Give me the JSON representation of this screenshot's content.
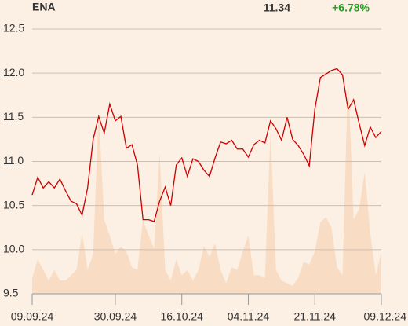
{
  "chart_data": {
    "type": "line",
    "title": "ENA",
    "last_price": "11.34",
    "change": "+6.78%",
    "categories": [
      "09.09.24",
      null,
      null,
      null,
      null,
      null,
      null,
      null,
      null,
      null,
      null,
      null,
      null,
      null,
      null,
      "30.09.24",
      null,
      null,
      null,
      null,
      null,
      null,
      null,
      null,
      null,
      null,
      null,
      "16.10.24",
      null,
      null,
      null,
      null,
      null,
      null,
      null,
      null,
      null,
      null,
      null,
      "04.11.24",
      null,
      null,
      null,
      null,
      null,
      null,
      null,
      null,
      null,
      null,
      null,
      "21.11.24",
      null,
      null,
      null,
      null,
      null,
      null,
      null,
      null,
      null,
      null,
      null,
      "09.12.24"
    ],
    "series": [
      {
        "name": "volume",
        "color": "#f8dcc4",
        "axis": "y2",
        "values": [
          6,
          13,
          9,
          5,
          9,
          5,
          5,
          7,
          9,
          23,
          9,
          15,
          69,
          28,
          22,
          15,
          18,
          16,
          10,
          9,
          28,
          22,
          17,
          53,
          9,
          5,
          13,
          7,
          9,
          5,
          9,
          18,
          14,
          19,
          9,
          4,
          10,
          9,
          16,
          22,
          7,
          7,
          6,
          61,
          9,
          5,
          4,
          3,
          6,
          12,
          11,
          16,
          27,
          29,
          25,
          10,
          7,
          83,
          28,
          32,
          46,
          23,
          7,
          16
        ]
      },
      {
        "name": "ENA",
        "color": "#cc0000",
        "values": [
          10.62,
          10.82,
          10.7,
          10.77,
          10.7,
          10.8,
          10.67,
          10.55,
          10.52,
          10.39,
          10.7,
          11.25,
          11.51,
          11.32,
          11.65,
          11.46,
          11.51,
          11.15,
          11.19,
          10.96,
          10.34,
          10.34,
          10.32,
          10.55,
          10.71,
          10.5,
          10.96,
          11.04,
          10.83,
          11.03,
          11.0,
          10.9,
          10.83,
          11.04,
          11.22,
          11.2,
          11.24,
          11.14,
          11.14,
          11.05,
          11.19,
          11.24,
          11.21,
          11.46,
          11.37,
          11.24,
          11.5,
          11.25,
          11.18,
          11.08,
          10.95,
          11.59,
          11.95,
          11.99,
          12.03,
          12.05,
          11.98,
          11.59,
          11.7,
          11.43,
          11.18,
          11.39,
          11.27,
          11.34
        ]
      }
    ],
    "ylim": [
      9.5,
      12.5
    ],
    "yticks": [
      9.5,
      {
        "value": 10,
        "label": "10.0"
      },
      10.5,
      {
        "value": 11,
        "label": "11.0"
      },
      11.5,
      {
        "value": 12,
        "label": "12.0"
      },
      12.5
    ],
    "y2lim": [
      0,
      100
    ],
    "grid": true
  }
}
